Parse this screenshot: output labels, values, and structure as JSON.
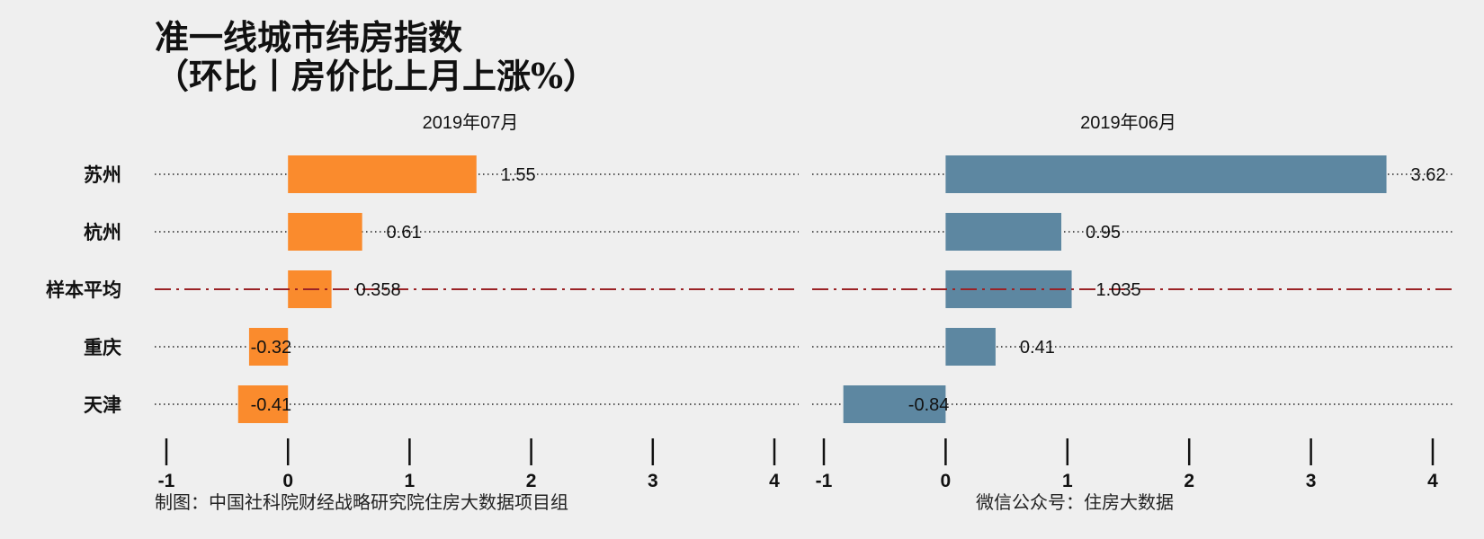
{
  "title_line1": "准一线城市纬房指数",
  "title_line2": "（环比丨房价比上月上涨%）",
  "footer_left": "制图：中国社科院财经战略研究院住房大数据项目组",
  "footer_right": "微信公众号：住房大数据",
  "chart_data": [
    {
      "type": "bar",
      "orientation": "horizontal",
      "title": "2019年07月",
      "categories": [
        "苏州",
        "杭州",
        "样本平均",
        "重庆",
        "天津"
      ],
      "values": [
        1.55,
        0.61,
        0.358,
        -0.32,
        -0.41
      ],
      "value_labels": [
        "1.55",
        "0.61",
        "0.358",
        "-0.32",
        "-0.41"
      ],
      "xlim": [
        -1,
        4
      ],
      "xticks": [
        "-1",
        "0",
        "1",
        "2",
        "3",
        "4"
      ],
      "color": "#fa8b2d",
      "average_category": "样本平均",
      "average_line_color": "#9b2226"
    },
    {
      "type": "bar",
      "orientation": "horizontal",
      "title": "2019年06月",
      "categories": [
        "苏州",
        "杭州",
        "样本平均",
        "重庆",
        "天津"
      ],
      "values": [
        3.62,
        0.95,
        1.035,
        0.41,
        -0.84
      ],
      "value_labels": [
        "3.62",
        "0.95",
        "1.035",
        "0.41",
        "-0.84"
      ],
      "xlim": [
        -1,
        4
      ],
      "xticks": [
        "-1",
        "0",
        "1",
        "2",
        "3",
        "4"
      ],
      "color": "#5d87a1",
      "average_category": "样本平均",
      "average_line_color": "#9b2226"
    }
  ]
}
